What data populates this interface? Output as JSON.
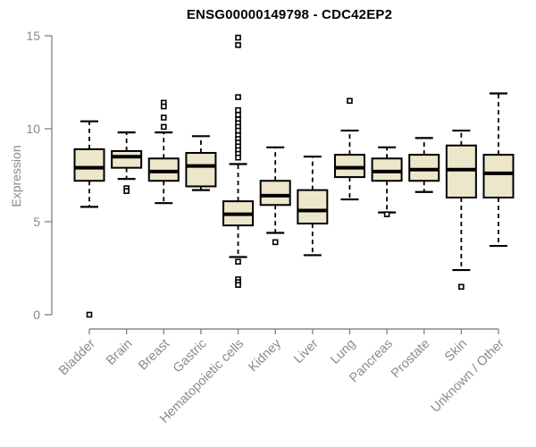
{
  "chart_data": {
    "type": "boxplot",
    "title": "ENSG00000149798 - CDC42EP2",
    "ylabel": "Expression",
    "xlabel": "",
    "ylim": [
      0,
      15
    ],
    "yticks": [
      0,
      5,
      10,
      15
    ],
    "grid": false,
    "legend": "none",
    "categories": [
      "Bladder",
      "Brain",
      "Breast",
      "Gastric",
      "Hematopoietic cells",
      "Kidney",
      "Liver",
      "Lung",
      "Pancreas",
      "Prostate",
      "Skin",
      "Unknown / Other"
    ],
    "boxes": [
      {
        "category": "Bladder",
        "whisker_low": 5.8,
        "q1": 7.2,
        "median": 7.9,
        "q3": 8.9,
        "whisker_high": 10.4,
        "outliers": [
          0.0
        ]
      },
      {
        "category": "Brain",
        "whisker_low": 7.3,
        "q1": 7.9,
        "median": 8.5,
        "q3": 8.8,
        "whisker_high": 9.8,
        "outliers": [
          6.8,
          6.65
        ]
      },
      {
        "category": "Breast",
        "whisker_low": 6.0,
        "q1": 7.2,
        "median": 7.7,
        "q3": 8.4,
        "whisker_high": 9.8,
        "outliers": [
          11.4,
          11.2,
          10.6,
          10.1
        ]
      },
      {
        "category": "Gastric",
        "whisker_low": 6.7,
        "q1": 6.9,
        "median": 8.0,
        "q3": 8.7,
        "whisker_high": 9.6,
        "outliers": []
      },
      {
        "category": "Hematopoietic cells",
        "whisker_low": 3.1,
        "q1": 4.8,
        "median": 5.4,
        "q3": 6.1,
        "whisker_high": 8.1,
        "outliers": [
          14.9,
          14.5,
          11.7,
          11.0,
          10.75,
          10.5,
          10.3,
          10.1,
          9.9,
          9.65,
          9.45,
          9.25,
          9.05,
          8.85,
          8.65,
          8.45,
          2.85,
          1.9,
          1.75,
          1.6
        ]
      },
      {
        "category": "Kidney",
        "whisker_low": 4.4,
        "q1": 5.9,
        "median": 6.4,
        "q3": 7.2,
        "whisker_high": 9.0,
        "outliers": [
          3.9
        ]
      },
      {
        "category": "Liver",
        "whisker_low": 3.2,
        "q1": 4.9,
        "median": 5.6,
        "q3": 6.7,
        "whisker_high": 8.5,
        "outliers": []
      },
      {
        "category": "Lung",
        "whisker_low": 6.2,
        "q1": 7.4,
        "median": 7.9,
        "q3": 8.6,
        "whisker_high": 9.9,
        "outliers": [
          11.5
        ]
      },
      {
        "category": "Pancreas",
        "whisker_low": 5.5,
        "q1": 7.2,
        "median": 7.7,
        "q3": 8.4,
        "whisker_high": 9.0,
        "outliers": [
          5.4
        ]
      },
      {
        "category": "Prostate",
        "whisker_low": 6.6,
        "q1": 7.2,
        "median": 7.8,
        "q3": 8.6,
        "whisker_high": 9.5,
        "outliers": []
      },
      {
        "category": "Skin",
        "whisker_low": 2.4,
        "q1": 6.3,
        "median": 7.8,
        "q3": 9.1,
        "whisker_high": 9.9,
        "outliers": [
          1.5
        ]
      },
      {
        "category": "Unknown / Other",
        "whisker_low": 3.7,
        "q1": 6.3,
        "median": 7.6,
        "q3": 8.6,
        "whisker_high": 11.9,
        "outliers": []
      }
    ]
  },
  "colors": {
    "background": "#ffffff",
    "box_fill": "#ece7cb",
    "box_stroke": "#000000",
    "median_stroke": "#000000",
    "whisker_stroke": "#000000",
    "outlier_stroke": "#000000",
    "axis_line": "#8a8a8a",
    "tick_label": "#8a8a8a",
    "title_color": "#000000"
  }
}
